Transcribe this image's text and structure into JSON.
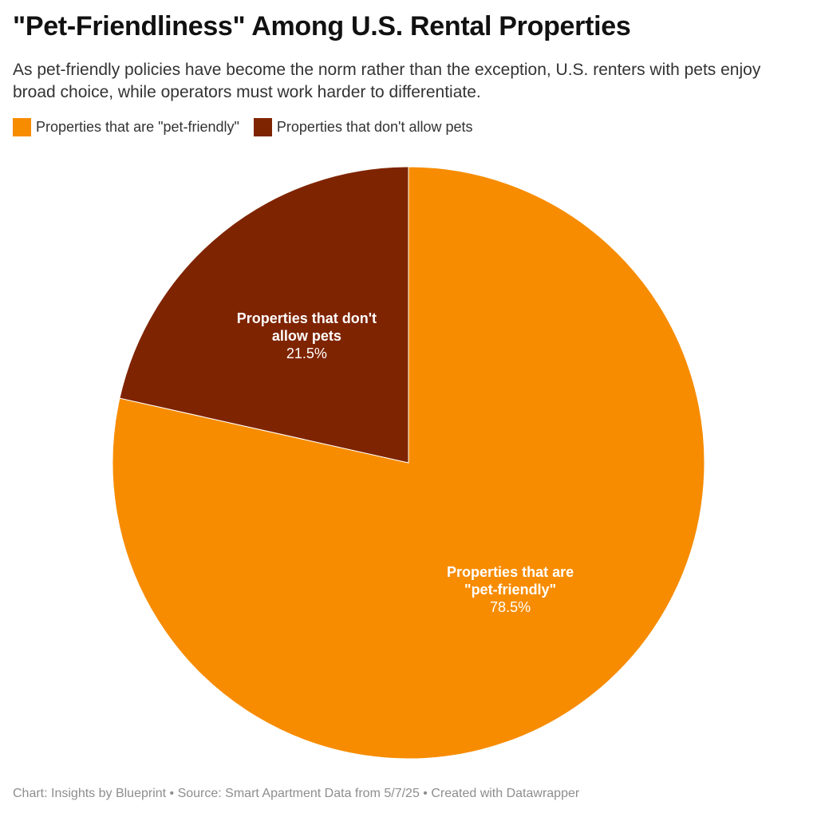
{
  "chart_data": {
    "type": "pie",
    "title": "\"Pet-Friendliness\" Among U.S. Rental Properties",
    "subtitle": "As pet-friendly policies have become the norm rather than the exception, U.S. renters with pets enjoy broad choice, while operators must work harder to differentiate.",
    "slices": [
      {
        "name": "Properties that are \"pet-friendly\"",
        "label_lines": [
          "Properties that are",
          "\"pet-friendly\""
        ],
        "value": 78.5,
        "value_label": "78.5%",
        "color": "#f78c00"
      },
      {
        "name": "Properties that don't allow pets",
        "label_lines": [
          "Properties that don't",
          "allow pets"
        ],
        "value": 21.5,
        "value_label": "21.5%",
        "color": "#7f2400"
      }
    ],
    "legend_placement": "top-left"
  },
  "footer": "Chart: Insights by Blueprint • Source: Smart Apartment Data from 5/7/25 • Created with Datawrapper"
}
